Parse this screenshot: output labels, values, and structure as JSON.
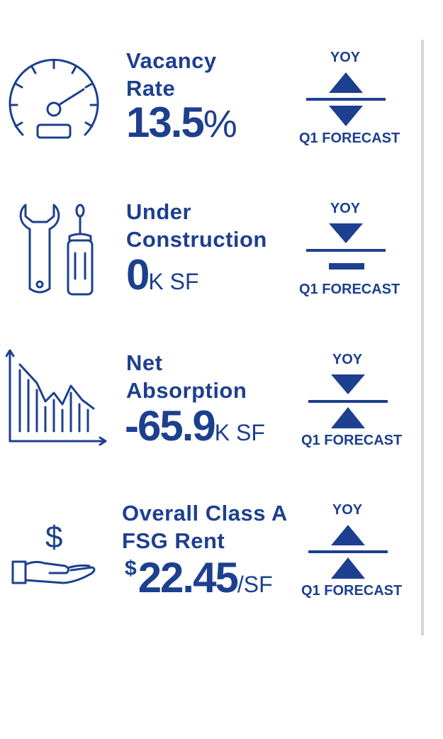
{
  "colors": {
    "primary": "#1d3f8f",
    "divider": "#d4d4d4",
    "background": "#ffffff"
  },
  "stats": [
    {
      "icon": "speedometer-icon",
      "label_lines": [
        "Vacancy",
        "Rate"
      ],
      "value": "13.5",
      "unit": "%",
      "yoy_label": "YOY",
      "forecast_label": "Q1 FORECAST",
      "yoy_trend": "up",
      "forecast_trend": "down"
    },
    {
      "icon": "tools-icon",
      "label_lines": [
        "Under",
        "Construction"
      ],
      "value": "0",
      "unit": "K SF",
      "yoy_label": "YOY",
      "forecast_label": "Q1 FORECAST",
      "yoy_trend": "down",
      "forecast_trend": "flat"
    },
    {
      "icon": "declining-chart-icon",
      "label_lines": [
        "Net",
        "Absorption"
      ],
      "value": "-65.9",
      "unit": "K SF",
      "yoy_label": "YOY",
      "forecast_label": "Q1 FORECAST",
      "yoy_trend": "down",
      "forecast_trend": "up"
    },
    {
      "icon": "hand-dollar-icon",
      "label_lines": [
        "Overall Class A",
        "FSG Rent"
      ],
      "value_prefix": "$",
      "value": "22.45",
      "unit": "/SF",
      "yoy_label": "YOY",
      "forecast_label": "Q1 FORECAST",
      "yoy_trend": "up",
      "forecast_trend": "up"
    }
  ]
}
